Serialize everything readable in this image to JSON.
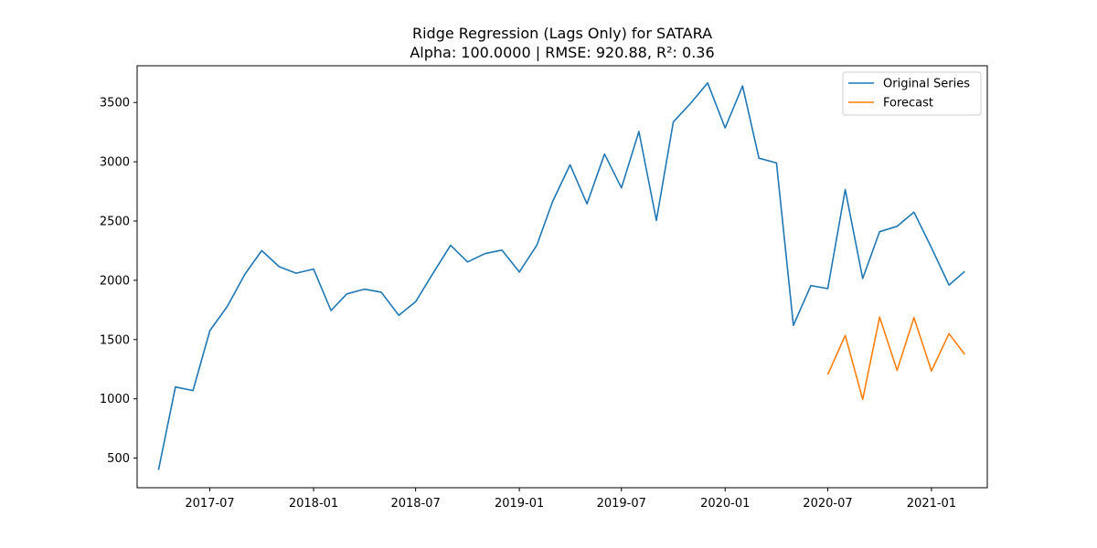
{
  "chart_data": {
    "type": "line",
    "title": "Ridge Regression (Lags Only) for SATARA",
    "subtitle": "Alpha: 100.0000 | RMSE: 920.88, R²: 0.36",
    "xlabel": "",
    "ylabel": "",
    "ylim": [
      250,
      3810
    ],
    "xlim": [
      "2017-02-22",
      "2021-04-10"
    ],
    "grid": false,
    "legend_position": "top-right",
    "x_ticks": [
      "2017-07",
      "2018-01",
      "2018-07",
      "2019-01",
      "2019-07",
      "2020-01",
      "2020-07",
      "2021-01"
    ],
    "y_ticks": [
      500,
      1000,
      1500,
      2000,
      2500,
      3000,
      3500
    ],
    "series": [
      {
        "name": "Original Series",
        "color": "#1f77b4",
        "x": [
          "2017-04",
          "2017-05",
          "2017-06",
          "2017-07",
          "2017-08",
          "2017-09",
          "2017-10",
          "2017-11",
          "2017-12",
          "2018-01",
          "2018-02",
          "2018-03",
          "2018-04",
          "2018-05",
          "2018-06",
          "2018-07",
          "2018-08",
          "2018-09",
          "2018-10",
          "2018-11",
          "2018-12",
          "2019-01",
          "2019-02",
          "2019-03",
          "2019-04",
          "2019-05",
          "2019-06",
          "2019-07",
          "2019-08",
          "2019-09",
          "2019-10",
          "2019-11",
          "2019-12",
          "2020-01",
          "2020-02",
          "2020-03",
          "2020-04",
          "2020-05",
          "2020-06",
          "2020-07",
          "2020-08",
          "2020-09",
          "2020-10",
          "2020-11",
          "2020-12",
          "2021-01",
          "2021-02",
          "2021-03"
        ],
        "values": [
          400,
          1100,
          1070,
          1575,
          1780,
          2050,
          2250,
          2115,
          2060,
          2095,
          1745,
          1885,
          1925,
          1900,
          1705,
          1820,
          2060,
          2295,
          2155,
          2225,
          2255,
          2070,
          2295,
          2665,
          2975,
          2645,
          3065,
          2780,
          3255,
          2505,
          3335,
          3495,
          3665,
          3285,
          3640,
          3030,
          2990,
          1620,
          1955,
          1930,
          2765,
          2015,
          2410,
          2455,
          2575,
          2275,
          1960,
          2075
        ]
      },
      {
        "name": "Forecast",
        "color": "#ff7f0e",
        "x": [
          "2020-07",
          "2020-08",
          "2020-09",
          "2020-10",
          "2020-11",
          "2020-12",
          "2021-01",
          "2021-02",
          "2021-03"
        ],
        "values": [
          1205,
          1535,
          995,
          1690,
          1240,
          1685,
          1235,
          1550,
          1375
        ]
      }
    ]
  }
}
